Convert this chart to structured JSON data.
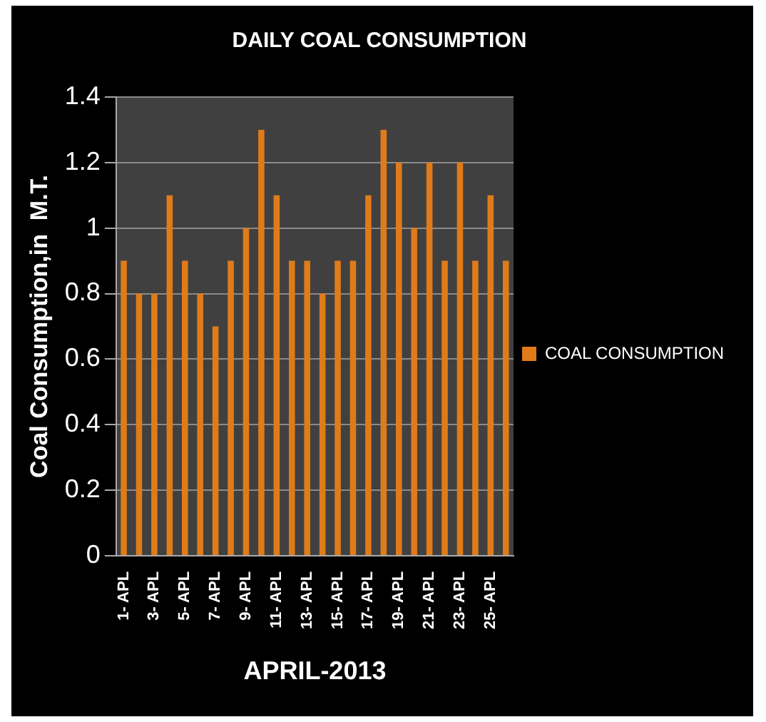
{
  "chart_data": {
    "type": "bar",
    "title": "DAILY COAL CONSUMPTION",
    "xlabel": "APRIL-2013",
    "ylabel": "Coal Consumption,in  M.T.",
    "categories": [
      "1- APL",
      null,
      "3- APL",
      null,
      "5- APL",
      null,
      "7- APL",
      null,
      "9- APL",
      null,
      "11- APL",
      null,
      "13- APL",
      null,
      "15- APL",
      null,
      "17- APL",
      null,
      "19- APL",
      null,
      "21- APL",
      null,
      "23- APL",
      null,
      "25- APL",
      null
    ],
    "series": [
      {
        "name": "COAL CONSUMPTION",
        "color": "#e07b1a",
        "values": [
          0.9,
          0.8,
          0.8,
          1.1,
          0.9,
          0.8,
          0.7,
          0.9,
          1.0,
          1.3,
          1.1,
          0.9,
          0.9,
          0.8,
          0.9,
          0.9,
          1.1,
          1.3,
          1.2,
          1.0,
          1.2,
          0.9,
          1.2,
          0.9,
          1.1,
          0.9
        ]
      }
    ],
    "ylim": [
      0,
      1.4
    ],
    "yticks": [
      0,
      0.2,
      0.4,
      0.6,
      0.8,
      1,
      1.2,
      1.4
    ],
    "grid": "y",
    "legend": "right"
  }
}
